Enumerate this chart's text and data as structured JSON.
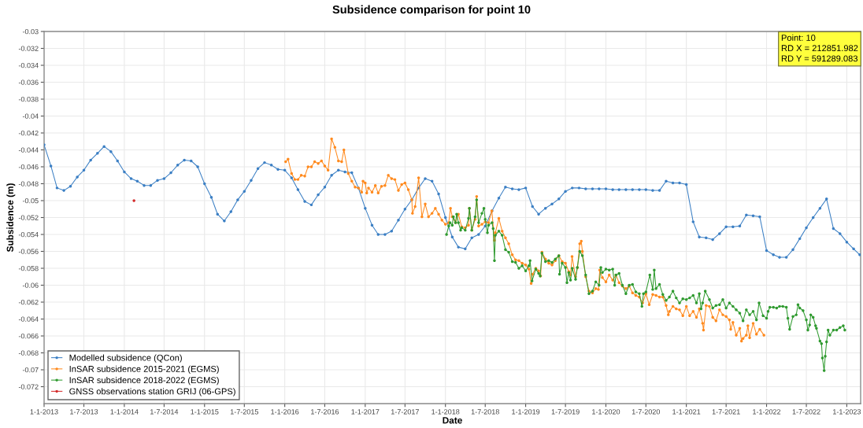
{
  "chart_data": {
    "type": "line",
    "title": "Subsidence comparison for point 10",
    "xlabel": "Date",
    "ylabel": "Subsidence (m)",
    "annotations": [
      "Point: 10\nRD X = 212851.982\nRD Y = 591289.083"
    ],
    "xlim": [
      "2013-01-01",
      "2023-03-05"
    ],
    "xticks": [
      {
        "value": "2013-01-01",
        "label": "1-1-2013"
      },
      {
        "value": "2013-07-01",
        "label": "1-7-2013"
      },
      {
        "value": "2014-01-01",
        "label": "1-1-2014"
      },
      {
        "value": "2014-07-01",
        "label": "1-7-2014"
      },
      {
        "value": "2015-01-01",
        "label": "1-1-2015"
      },
      {
        "value": "2015-07-01",
        "label": "1-7-2015"
      },
      {
        "value": "2016-01-01",
        "label": "1-1-2016"
      },
      {
        "value": "2016-07-01",
        "label": "1-7-2016"
      },
      {
        "value": "2017-01-01",
        "label": "1-1-2017"
      },
      {
        "value": "2017-07-01",
        "label": "1-7-2017"
      },
      {
        "value": "2018-01-01",
        "label": "1-1-2018"
      },
      {
        "value": "2018-07-01",
        "label": "1-7-2018"
      },
      {
        "value": "2019-01-01",
        "label": "1-1-2019"
      },
      {
        "value": "2019-07-01",
        "label": "1-7-2019"
      },
      {
        "value": "2020-01-01",
        "label": "1-1-2020"
      },
      {
        "value": "2020-07-01",
        "label": "1-7-2020"
      },
      {
        "value": "2021-01-01",
        "label": "1-1-2021"
      },
      {
        "value": "2021-07-01",
        "label": "1-7-2021"
      },
      {
        "value": "2022-01-01",
        "label": "1-1-2022"
      },
      {
        "value": "2022-07-01",
        "label": "1-7-2022"
      },
      {
        "value": "2023-01-01",
        "label": "1-1-2023"
      }
    ],
    "ylim": [
      -0.074,
      -0.03
    ],
    "yticks": [
      -0.072,
      -0.07,
      -0.068,
      -0.066,
      -0.064,
      -0.062,
      -0.06,
      -0.058,
      -0.056,
      -0.054,
      -0.052,
      -0.05,
      -0.048,
      -0.046,
      -0.044,
      -0.042,
      -0.04,
      -0.038,
      -0.036,
      -0.034,
      -0.032,
      -0.03
    ],
    "grid": true,
    "legend": "bottom left",
    "marker": "circle",
    "line_style": "solid",
    "series": [
      {
        "name": "Modelled subsidence (QCon)",
        "color": "#3b7fc4",
        "x": [
          "2013-01",
          "2013-02",
          "2013-03",
          "2013-04",
          "2013-05",
          "2013-06",
          "2013-07",
          "2013-08",
          "2013-09",
          "2013-10",
          "2013-11",
          "2013-12",
          "2014-01",
          "2014-02",
          "2014-03",
          "2014-04",
          "2014-05",
          "2014-06",
          "2014-07",
          "2014-08",
          "2014-09",
          "2014-10",
          "2014-11",
          "2014-12",
          "2015-01",
          "2015-02",
          "2015-03",
          "2015-04",
          "2015-05",
          "2015-06",
          "2015-07",
          "2015-08",
          "2015-09",
          "2015-10",
          "2015-11",
          "2015-12",
          "2016-01",
          "2016-02",
          "2016-03",
          "2016-04",
          "2016-05",
          "2016-06",
          "2016-07",
          "2016-08",
          "2016-09",
          "2016-10",
          "2016-11",
          "2016-12",
          "2017-01",
          "2017-02",
          "2017-03",
          "2017-04",
          "2017-05",
          "2017-06",
          "2017-07",
          "2017-08",
          "2017-09",
          "2017-10",
          "2017-11",
          "2017-12",
          "2018-01",
          "2018-02",
          "2018-03",
          "2018-04",
          "2018-05",
          "2018-06",
          "2018-07",
          "2018-08",
          "2018-09",
          "2018-10",
          "2018-11",
          "2018-12",
          "2019-01",
          "2019-02",
          "2019-03",
          "2019-04",
          "2019-05",
          "2019-06",
          "2019-07",
          "2019-08",
          "2019-09",
          "2019-10",
          "2019-11",
          "2019-12",
          "2020-01",
          "2020-02",
          "2020-03",
          "2020-04",
          "2020-05",
          "2020-06",
          "2020-07",
          "2020-08",
          "2020-09",
          "2020-10",
          "2020-11",
          "2020-12",
          "2021-01",
          "2021-02",
          "2021-03",
          "2021-04",
          "2021-05",
          "2021-06",
          "2021-07",
          "2021-08",
          "2021-09",
          "2021-10",
          "2021-11",
          "2021-12",
          "2022-01",
          "2022-02",
          "2022-03",
          "2022-04",
          "2022-05",
          "2022-06",
          "2022-07",
          "2022-08",
          "2022-09",
          "2022-10",
          "2022-11",
          "2022-12",
          "2023-01",
          "2023-02",
          "2023-03"
        ],
        "values": [
          -0.0434,
          -0.0459,
          -0.0485,
          -0.0488,
          -0.0483,
          -0.0472,
          -0.0464,
          -0.0452,
          -0.0444,
          -0.0436,
          -0.0442,
          -0.0453,
          -0.0466,
          -0.0474,
          -0.0477,
          -0.0482,
          -0.0482,
          -0.0476,
          -0.0474,
          -0.0467,
          -0.0458,
          -0.0452,
          -0.0453,
          -0.046,
          -0.048,
          -0.0496,
          -0.0516,
          -0.0524,
          -0.0513,
          -0.0499,
          -0.0489,
          -0.0476,
          -0.0462,
          -0.0455,
          -0.0458,
          -0.0463,
          -0.0464,
          -0.0473,
          -0.0487,
          -0.0501,
          -0.0505,
          -0.0493,
          -0.0484,
          -0.047,
          -0.0464,
          -0.0466,
          -0.0467,
          -0.0485,
          -0.0509,
          -0.0529,
          -0.054,
          -0.054,
          -0.0536,
          -0.0523,
          -0.051,
          -0.0499,
          -0.0485,
          -0.0474,
          -0.0477,
          -0.0492,
          -0.052,
          -0.0543,
          -0.0555,
          -0.0557,
          -0.0544,
          -0.054,
          -0.053,
          -0.0512,
          -0.0497,
          -0.0484,
          -0.0486,
          -0.0487,
          -0.0485,
          -0.0507,
          -0.0516,
          -0.0509,
          -0.0504,
          -0.0498,
          -0.0489,
          -0.0485,
          -0.0485,
          -0.0486,
          -0.0486,
          -0.0486,
          -0.0486,
          -0.0487,
          -0.0487,
          -0.0487,
          -0.0487,
          -0.0487,
          -0.0487,
          -0.0488,
          -0.0488,
          -0.0477,
          -0.0479,
          -0.0479,
          -0.0481,
          -0.0525,
          -0.0543,
          -0.0544,
          -0.0546,
          -0.0539,
          -0.0531,
          -0.0531,
          -0.053,
          -0.0517,
          -0.0518,
          -0.0519,
          -0.0559,
          -0.0564,
          -0.0567,
          -0.0567,
          -0.0558,
          -0.0545,
          -0.0532,
          -0.052,
          -0.0509,
          -0.0498,
          -0.0533,
          -0.0539,
          -0.0549,
          -0.0557,
          -0.0564
        ]
      },
      {
        "name": "InSAR subsidence 2015-2021 (EGMS)",
        "color": "#ff8a1e",
        "x": [
          "2016-01-05",
          "2016-01-16",
          "2016-02-01",
          "2016-02-16",
          "2016-03-01",
          "2016-03-16",
          "2016-04-01",
          "2016-04-16",
          "2016-05-01",
          "2016-05-16",
          "2016-06-01",
          "2016-06-16",
          "2016-07-01",
          "2016-07-16",
          "2016-08-01",
          "2016-08-16",
          "2016-09-01",
          "2016-09-16",
          "2016-09-26",
          "2016-10-16",
          "2016-11-01",
          "2016-11-16",
          "2016-12-01",
          "2016-12-16",
          "2016-12-22",
          "2017-01-01",
          "2017-01-08",
          "2017-01-16",
          "2017-02-01",
          "2017-02-16",
          "2017-03-01",
          "2017-03-16",
          "2017-04-01",
          "2017-04-16",
          "2017-05-01",
          "2017-05-16",
          "2017-06-01",
          "2017-06-16",
          "2017-07-01",
          "2017-07-16",
          "2017-08-01",
          "2017-08-04",
          "2017-08-16",
          "2017-09-01",
          "2017-09-16",
          "2017-10-01",
          "2017-10-16",
          "2017-11-01",
          "2017-11-16",
          "2017-12-01",
          "2017-12-16",
          "2018-01-01",
          "2018-01-16",
          "2018-01-24",
          "2018-02-01",
          "2018-02-16",
          "2018-03-01",
          "2018-03-16",
          "2018-04-01",
          "2018-04-16",
          "2018-04-20",
          "2018-05-01",
          "2018-05-16",
          "2018-05-23",
          "2018-06-01",
          "2018-06-16",
          "2018-07-01",
          "2018-07-16",
          "2018-07-31",
          "2018-08-12",
          "2018-08-16",
          "2018-09-01",
          "2018-09-16",
          "2018-10-01",
          "2018-10-16",
          "2018-11-01",
          "2018-11-16",
          "2018-12-01",
          "2018-12-16",
          "2019-01-01",
          "2019-01-16",
          "2019-01-26",
          "2019-02-01",
          "2019-02-16",
          "2019-03-01",
          "2019-03-10",
          "2019-03-16",
          "2019-04-01",
          "2019-04-16",
          "2019-05-01",
          "2019-05-16",
          "2019-06-01",
          "2019-06-16",
          "2019-07-01",
          "2019-07-16",
          "2019-07-24",
          "2019-07-31",
          "2019-08-16",
          "2019-08-25",
          "2019-09-04",
          "2019-09-11",
          "2019-09-16",
          "2019-10-01",
          "2019-10-16",
          "2019-11-01",
          "2019-11-16",
          "2019-11-28",
          "2019-12-04",
          "2019-12-16",
          "2020-01-01",
          "2020-01-16",
          "2020-02-01",
          "2020-02-16",
          "2020-03-01",
          "2020-03-16",
          "2020-04-01",
          "2020-04-16",
          "2020-05-01",
          "2020-05-16",
          "2020-06-01",
          "2020-06-16",
          "2020-07-01",
          "2020-07-16",
          "2020-08-01",
          "2020-08-16",
          "2020-09-01",
          "2020-09-16",
          "2020-10-01",
          "2020-10-11",
          "2020-10-16",
          "2020-11-01",
          "2020-11-16",
          "2020-12-01",
          "2020-12-16",
          "2021-01-01",
          "2021-01-16",
          "2021-02-01",
          "2021-02-16",
          "2021-03-01",
          "2021-03-16",
          "2021-03-20",
          "2021-04-01",
          "2021-04-16",
          "2021-05-01",
          "2021-05-16",
          "2021-06-01",
          "2021-06-16",
          "2021-07-01",
          "2021-07-16",
          "2021-07-22",
          "2021-08-01",
          "2021-08-16",
          "2021-09-01",
          "2021-09-09",
          "2021-09-16",
          "2021-10-01",
          "2021-10-08",
          "2021-10-16",
          "2021-11-01",
          "2021-11-16",
          "2021-12-01",
          "2021-12-20"
        ],
        "values": [
          -0.0454,
          -0.0451,
          -0.0468,
          -0.0475,
          -0.0475,
          -0.047,
          -0.0471,
          -0.046,
          -0.046,
          -0.0454,
          -0.0456,
          -0.0453,
          -0.0459,
          -0.0464,
          -0.0427,
          -0.0437,
          -0.0453,
          -0.0454,
          -0.044,
          -0.0468,
          -0.0477,
          -0.0484,
          -0.0485,
          -0.049,
          -0.0477,
          -0.0479,
          -0.0491,
          -0.0485,
          -0.049,
          -0.0482,
          -0.0491,
          -0.0483,
          -0.0482,
          -0.047,
          -0.0474,
          -0.0475,
          -0.0488,
          -0.0481,
          -0.0479,
          -0.0487,
          -0.0499,
          -0.0515,
          -0.0507,
          -0.0473,
          -0.0519,
          -0.0504,
          -0.0519,
          -0.0515,
          -0.0509,
          -0.0516,
          -0.0523,
          -0.0528,
          -0.0526,
          -0.0509,
          -0.0519,
          -0.0526,
          -0.0516,
          -0.0531,
          -0.0532,
          -0.0529,
          -0.0509,
          -0.0535,
          -0.0522,
          -0.0495,
          -0.053,
          -0.0528,
          -0.0525,
          -0.0526,
          -0.0512,
          -0.0547,
          -0.0538,
          -0.0521,
          -0.0536,
          -0.0544,
          -0.0551,
          -0.0564,
          -0.057,
          -0.0571,
          -0.0574,
          -0.0576,
          -0.0581,
          -0.0598,
          -0.0587,
          -0.058,
          -0.0583,
          -0.0589,
          -0.0561,
          -0.0569,
          -0.0574,
          -0.0576,
          -0.0571,
          -0.0565,
          -0.0572,
          -0.0574,
          -0.0584,
          -0.0588,
          -0.0566,
          -0.059,
          -0.0579,
          -0.0551,
          -0.0548,
          -0.056,
          -0.059,
          -0.0607,
          -0.0609,
          -0.0604,
          -0.0605,
          -0.0582,
          -0.0591,
          -0.0596,
          -0.0588,
          -0.0594,
          -0.0588,
          -0.0597,
          -0.0601,
          -0.0604,
          -0.0601,
          -0.0609,
          -0.0612,
          -0.0614,
          -0.0621,
          -0.061,
          -0.0623,
          -0.0611,
          -0.0612,
          -0.0614,
          -0.0614,
          -0.0624,
          -0.0635,
          -0.0631,
          -0.0625,
          -0.0628,
          -0.0629,
          -0.0636,
          -0.0625,
          -0.0636,
          -0.0631,
          -0.0638,
          -0.0628,
          -0.0645,
          -0.0653,
          -0.0624,
          -0.0625,
          -0.0638,
          -0.0642,
          -0.0629,
          -0.0635,
          -0.0637,
          -0.0641,
          -0.0652,
          -0.0644,
          -0.0659,
          -0.0651,
          -0.0666,
          -0.0663,
          -0.0659,
          -0.0648,
          -0.0662,
          -0.0645,
          -0.0658,
          -0.0652,
          -0.0659
        ]
      },
      {
        "name": "InSAR subsidence 2018-2022 (EGMS)",
        "color": "#2f9a2f",
        "x": [
          "2018-01-06",
          "2018-01-16",
          "2018-01-22",
          "2018-02-01",
          "2018-02-06",
          "2018-02-16",
          "2018-02-21",
          "2018-03-01",
          "2018-03-11",
          "2018-03-16",
          "2018-04-01",
          "2018-04-16",
          "2018-04-20",
          "2018-05-01",
          "2018-05-16",
          "2018-05-23",
          "2018-06-01",
          "2018-06-16",
          "2018-06-25",
          "2018-07-01",
          "2018-07-11",
          "2018-07-16",
          "2018-08-01",
          "2018-08-06",
          "2018-08-12",
          "2018-08-16",
          "2018-09-01",
          "2018-09-16",
          "2018-10-01",
          "2018-10-16",
          "2018-11-01",
          "2018-11-16",
          "2018-12-01",
          "2018-12-16",
          "2019-01-01",
          "2019-01-16",
          "2019-01-21",
          "2019-01-30",
          "2019-02-16",
          "2019-03-01",
          "2019-03-08",
          "2019-03-16",
          "2019-04-01",
          "2019-04-16",
          "2019-05-01",
          "2019-05-16",
          "2019-06-01",
          "2019-06-04",
          "2019-06-16",
          "2019-07-01",
          "2019-07-08",
          "2019-07-16",
          "2019-07-24",
          "2019-08-01",
          "2019-08-16",
          "2019-08-24",
          "2019-09-04",
          "2019-09-16",
          "2019-10-01",
          "2019-10-16",
          "2019-11-01",
          "2019-11-16",
          "2019-12-01",
          "2019-12-09",
          "2019-12-16",
          "2020-01-01",
          "2020-01-16",
          "2020-02-01",
          "2020-02-10",
          "2020-02-16",
          "2020-03-01",
          "2020-03-16",
          "2020-04-01",
          "2020-04-16",
          "2020-05-01",
          "2020-05-16",
          "2020-06-01",
          "2020-06-13",
          "2020-06-20",
          "2020-07-01",
          "2020-07-19",
          "2020-08-01",
          "2020-08-08",
          "2020-08-16",
          "2020-09-01",
          "2020-09-16",
          "2020-10-01",
          "2020-10-16",
          "2020-11-01",
          "2020-11-16",
          "2020-12-01",
          "2020-12-16",
          "2021-01-01",
          "2021-01-16",
          "2021-02-01",
          "2021-02-16",
          "2021-03-01",
          "2021-03-09",
          "2021-03-16",
          "2021-03-28",
          "2021-04-16",
          "2021-05-01",
          "2021-05-16",
          "2021-06-01",
          "2021-06-16",
          "2021-07-01",
          "2021-07-16",
          "2021-08-01",
          "2021-08-16",
          "2021-09-01",
          "2021-09-16",
          "2021-10-01",
          "2021-10-16",
          "2021-11-01",
          "2021-11-16",
          "2021-11-28",
          "2021-12-16",
          "2022-01-01",
          "2022-01-08",
          "2022-01-16",
          "2022-02-01",
          "2022-02-16",
          "2022-03-01",
          "2022-03-16",
          "2022-04-01",
          "2022-04-08",
          "2022-04-16",
          "2022-05-01",
          "2022-05-16",
          "2022-05-24",
          "2022-06-01",
          "2022-06-16",
          "2022-07-01",
          "2022-07-08",
          "2022-07-16",
          "2022-07-21",
          "2022-08-01",
          "2022-08-12",
          "2022-08-16",
          "2022-09-01",
          "2022-09-08",
          "2022-09-12",
          "2022-09-20",
          "2022-09-25",
          "2022-10-01",
          "2022-10-08",
          "2022-10-16",
          "2022-11-01",
          "2022-11-16",
          "2022-12-01",
          "2022-12-16",
          "2022-12-23"
        ],
        "values": [
          -0.054,
          -0.053,
          -0.0526,
          -0.0529,
          -0.0519,
          -0.0526,
          -0.0516,
          -0.0526,
          -0.0535,
          -0.0532,
          -0.0535,
          -0.0521,
          -0.0509,
          -0.0535,
          -0.0519,
          -0.0499,
          -0.0526,
          -0.0515,
          -0.0509,
          -0.0522,
          -0.0538,
          -0.0529,
          -0.0526,
          -0.0533,
          -0.0571,
          -0.0541,
          -0.0536,
          -0.0541,
          -0.0558,
          -0.0561,
          -0.0572,
          -0.0573,
          -0.058,
          -0.0577,
          -0.0583,
          -0.0577,
          -0.0571,
          -0.0595,
          -0.0581,
          -0.0586,
          -0.0589,
          -0.0562,
          -0.0572,
          -0.0571,
          -0.0573,
          -0.0569,
          -0.0565,
          -0.0587,
          -0.0574,
          -0.0579,
          -0.0597,
          -0.0585,
          -0.0594,
          -0.058,
          -0.0593,
          -0.0579,
          -0.056,
          -0.0565,
          -0.0588,
          -0.061,
          -0.0607,
          -0.0596,
          -0.06,
          -0.0579,
          -0.0585,
          -0.0581,
          -0.0582,
          -0.0581,
          -0.06,
          -0.0588,
          -0.0586,
          -0.06,
          -0.061,
          -0.06,
          -0.0599,
          -0.0608,
          -0.061,
          -0.0625,
          -0.061,
          -0.0608,
          -0.0588,
          -0.0605,
          -0.0582,
          -0.0604,
          -0.0599,
          -0.0611,
          -0.0618,
          -0.0614,
          -0.0607,
          -0.0615,
          -0.0621,
          -0.0616,
          -0.0617,
          -0.0615,
          -0.0612,
          -0.0621,
          -0.061,
          -0.0628,
          -0.0621,
          -0.0607,
          -0.0617,
          -0.0627,
          -0.0624,
          -0.0623,
          -0.0617,
          -0.0627,
          -0.0621,
          -0.0625,
          -0.0629,
          -0.0633,
          -0.0642,
          -0.0629,
          -0.0635,
          -0.0631,
          -0.0641,
          -0.0621,
          -0.0636,
          -0.0639,
          -0.0631,
          -0.0626,
          -0.0626,
          -0.0627,
          -0.0625,
          -0.0625,
          -0.0626,
          -0.0639,
          -0.0652,
          -0.0637,
          -0.0635,
          -0.0623,
          -0.0627,
          -0.063,
          -0.0641,
          -0.0653,
          -0.0647,
          -0.0635,
          -0.0638,
          -0.0648,
          -0.0651,
          -0.0666,
          -0.0669,
          -0.0686,
          -0.0701,
          -0.0684,
          -0.0667,
          -0.0653,
          -0.0659,
          -0.0653,
          -0.0653,
          -0.065,
          -0.0648,
          -0.0653
        ]
      },
      {
        "name": "GNSS observations station GRIJ (06-GPS)",
        "color": "#d42a2a",
        "x": [
          "2014-02-14"
        ],
        "values": [
          -0.05
        ]
      }
    ]
  }
}
